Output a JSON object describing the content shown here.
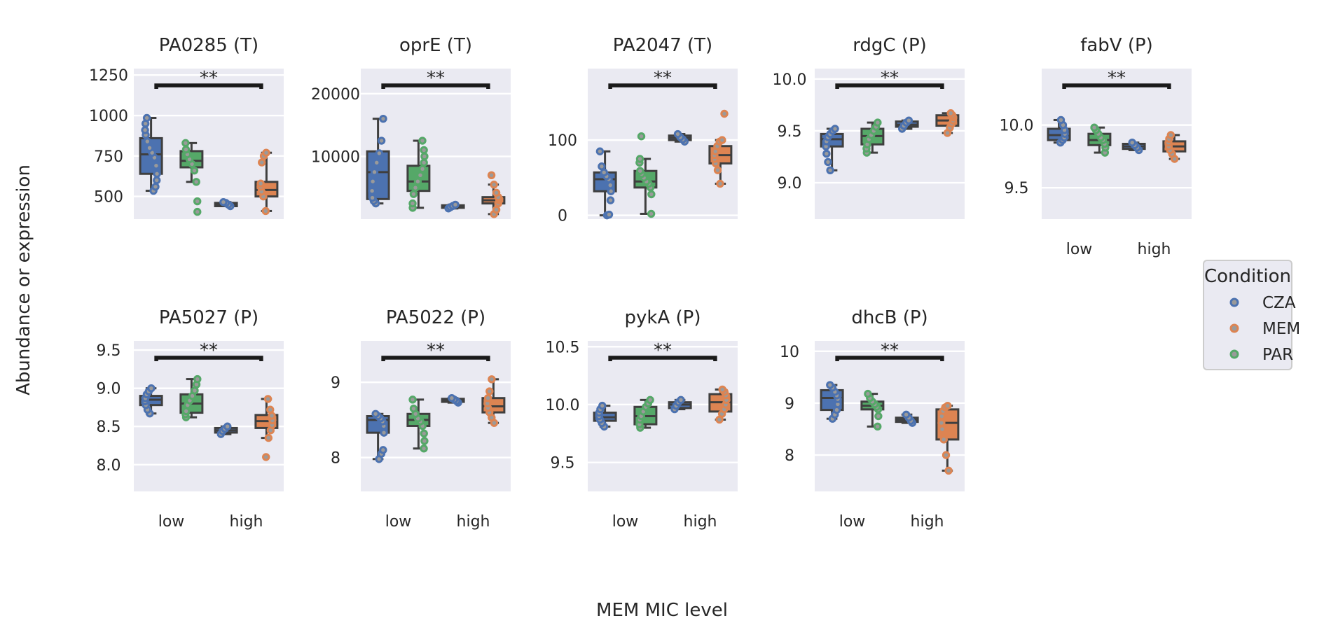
{
  "figure": {
    "xlabel": "MEM MIC level",
    "ylabel": "Abundance or expression"
  },
  "legend": {
    "title": "Condition",
    "entries": [
      {
        "label": "CZA",
        "color": "#4c72b0"
      },
      {
        "label": "MEM",
        "color": "#dd8452"
      },
      {
        "label": "PAR",
        "color": "#55a868"
      }
    ]
  },
  "chart_data": [
    {
      "type": "box",
      "title": "PA0285 (T)",
      "categories": [
        "low",
        "high"
      ],
      "ylim": [
        360,
        1290
      ],
      "yticks": [
        500,
        750,
        1000,
        1250
      ],
      "yticklabels": [
        "500",
        "750",
        "1000",
        "1250"
      ],
      "show_xticks": false,
      "annotation": "**",
      "groups": [
        {
          "name": "CZA",
          "category": "low",
          "offset": -0.27,
          "color": "#4c72b0",
          "q1": 640,
          "median": 760,
          "q3": 860,
          "whislo": 535,
          "whishi": 985,
          "points": [
            535,
            560,
            600,
            640,
            690,
            740,
            770,
            800,
            840,
            880,
            910,
            950,
            985
          ]
        },
        {
          "name": "PAR",
          "category": "low",
          "offset": 0.27,
          "color": "#55a868",
          "q1": 680,
          "median": 720,
          "q3": 780,
          "whislo": 590,
          "whishi": 830,
          "points": [
            405,
            470,
            590,
            660,
            700,
            730,
            760,
            790,
            830
          ]
        },
        {
          "name": "CZA",
          "category": "high",
          "offset": -0.27,
          "color": "#4c72b0",
          "q1": 440,
          "median": 450,
          "q3": 460,
          "whislo": 440,
          "whishi": 465,
          "points": [
            440,
            450,
            460,
            465
          ]
        },
        {
          "name": "MEM",
          "category": "high",
          "offset": 0.27,
          "color": "#dd8452",
          "q1": 500,
          "median": 540,
          "q3": 590,
          "whislo": 410,
          "whishi": 770,
          "points": [
            410,
            500,
            530,
            560,
            580,
            710,
            750,
            770
          ]
        }
      ]
    },
    {
      "type": "box",
      "title": "oprE (T)",
      "categories": [
        "low",
        "high"
      ],
      "ylim": [
        0,
        24000
      ],
      "yticks": [
        10000,
        20000
      ],
      "yticklabels": [
        "10000",
        "20000"
      ],
      "show_xticks": false,
      "annotation": "**",
      "groups": [
        {
          "name": "CZA",
          "category": "low",
          "offset": -0.27,
          "color": "#4c72b0",
          "q1": 3200,
          "median": 7500,
          "q3": 10800,
          "whislo": 2500,
          "whishi": 16000,
          "points": [
            2500,
            2900,
            3400,
            4500,
            6000,
            7500,
            9000,
            10500,
            12500,
            16000
          ]
        },
        {
          "name": "PAR",
          "category": "low",
          "offset": 0.27,
          "color": "#55a868",
          "q1": 4500,
          "median": 6000,
          "q3": 8500,
          "whislo": 1800,
          "whishi": 12500,
          "points": [
            1800,
            2500,
            4000,
            5000,
            6000,
            7000,
            8000,
            9000,
            10000,
            11000,
            12500
          ]
        },
        {
          "name": "CZA",
          "category": "high",
          "offset": -0.27,
          "color": "#4c72b0",
          "q1": 1800,
          "median": 2000,
          "q3": 2200,
          "whislo": 1700,
          "whishi": 2300,
          "points": [
            1700,
            1900,
            2100,
            2300
          ]
        },
        {
          "name": "MEM",
          "category": "high",
          "offset": 0.27,
          "color": "#dd8452",
          "q1": 2500,
          "median": 3000,
          "q3": 3500,
          "whislo": 800,
          "whishi": 5500,
          "points": [
            800,
            1500,
            2500,
            3000,
            3200,
            3500,
            4200,
            5500,
            7000
          ]
        }
      ]
    },
    {
      "type": "box",
      "title": "PA2047 (T)",
      "categories": [
        "low",
        "high"
      ],
      "ylim": [
        -5,
        195
      ],
      "yticks": [
        0,
        100
      ],
      "yticklabels": [
        "0",
        "100"
      ],
      "show_xticks": false,
      "annotation": "**",
      "groups": [
        {
          "name": "CZA",
          "category": "low",
          "offset": -0.27,
          "color": "#4c72b0",
          "q1": 32,
          "median": 48,
          "q3": 57,
          "whislo": 0,
          "whishi": 85,
          "points": [
            0,
            1,
            20,
            32,
            40,
            48,
            52,
            57,
            65,
            85
          ]
        },
        {
          "name": "PAR",
          "category": "low",
          "offset": 0.27,
          "color": "#55a868",
          "q1": 37,
          "median": 45,
          "q3": 59,
          "whislo": 2,
          "whishi": 75,
          "points": [
            2,
            28,
            37,
            42,
            45,
            50,
            55,
            59,
            70,
            75,
            105
          ]
        },
        {
          "name": "CZA",
          "category": "high",
          "offset": -0.27,
          "color": "#4c72b0",
          "q1": 100,
          "median": 103,
          "q3": 106,
          "whislo": 98,
          "whishi": 108,
          "points": [
            98,
            101,
            104,
            108
          ]
        },
        {
          "name": "MEM",
          "category": "high",
          "offset": 0.27,
          "color": "#dd8452",
          "q1": 69,
          "median": 80,
          "q3": 92,
          "whislo": 42,
          "whishi": 100,
          "points": [
            42,
            60,
            69,
            75,
            80,
            85,
            92,
            98,
            100,
            135
          ]
        }
      ]
    },
    {
      "type": "box",
      "title": "rdgC (P)",
      "categories": [
        "low",
        "high"
      ],
      "ylim": [
        8.65,
        10.1
      ],
      "yticks": [
        9.0,
        9.5,
        10.0
      ],
      "yticklabels": [
        "9.0",
        "9.5",
        "10.0"
      ],
      "show_xticks": false,
      "annotation": "**",
      "groups": [
        {
          "name": "CZA",
          "category": "low",
          "offset": -0.27,
          "color": "#4c72b0",
          "q1": 9.35,
          "median": 9.42,
          "q3": 9.47,
          "whislo": 9.12,
          "whishi": 9.52,
          "points": [
            9.12,
            9.2,
            9.28,
            9.35,
            9.4,
            9.44,
            9.47,
            9.5,
            9.52
          ]
        },
        {
          "name": "PAR",
          "category": "low",
          "offset": 0.27,
          "color": "#55a868",
          "q1": 9.37,
          "median": 9.45,
          "q3": 9.52,
          "whislo": 9.29,
          "whishi": 9.58,
          "points": [
            9.29,
            9.33,
            9.37,
            9.42,
            9.46,
            9.5,
            9.54,
            9.58
          ]
        },
        {
          "name": "CZA",
          "category": "high",
          "offset": -0.27,
          "color": "#4c72b0",
          "q1": 9.54,
          "median": 9.56,
          "q3": 9.59,
          "whislo": 9.52,
          "whishi": 9.6,
          "points": [
            9.52,
            9.55,
            9.58,
            9.6
          ]
        },
        {
          "name": "MEM",
          "category": "high",
          "offset": 0.27,
          "color": "#dd8452",
          "q1": 9.55,
          "median": 9.6,
          "q3": 9.65,
          "whislo": 9.48,
          "whishi": 9.67,
          "points": [
            9.48,
            9.53,
            9.57,
            9.6,
            9.63,
            9.65,
            9.67
          ]
        }
      ]
    },
    {
      "type": "box",
      "title": "fabV (P)",
      "categories": [
        "low",
        "high"
      ],
      "ylim": [
        9.25,
        10.45
      ],
      "yticks": [
        9.5,
        10.0
      ],
      "yticklabels": [
        "9.5",
        "10.0"
      ],
      "show_xticks": true,
      "annotation": "**",
      "groups": [
        {
          "name": "CZA",
          "category": "low",
          "offset": -0.27,
          "color": "#4c72b0",
          "q1": 9.88,
          "median": 9.92,
          "q3": 9.97,
          "whislo": 9.86,
          "whishi": 10.04,
          "points": [
            9.86,
            9.88,
            9.9,
            9.93,
            9.96,
            10.0,
            10.04
          ]
        },
        {
          "name": "PAR",
          "category": "low",
          "offset": 0.27,
          "color": "#55a868",
          "q1": 9.84,
          "median": 9.88,
          "q3": 9.93,
          "whislo": 9.78,
          "whishi": 9.98,
          "points": [
            9.78,
            9.82,
            9.85,
            9.88,
            9.9,
            9.93,
            9.96,
            9.98
          ]
        },
        {
          "name": "CZA",
          "category": "high",
          "offset": -0.27,
          "color": "#4c72b0",
          "q1": 9.81,
          "median": 9.83,
          "q3": 9.85,
          "whislo": 9.8,
          "whishi": 9.86,
          "points": [
            9.8,
            9.82,
            9.84,
            9.86
          ]
        },
        {
          "name": "MEM",
          "category": "high",
          "offset": 0.27,
          "color": "#dd8452",
          "q1": 9.79,
          "median": 9.83,
          "q3": 9.87,
          "whislo": 9.73,
          "whishi": 9.92,
          "points": [
            9.73,
            9.77,
            9.8,
            9.83,
            9.86,
            9.89,
            9.92
          ]
        }
      ]
    },
    {
      "type": "box",
      "title": "PA5027 (P)",
      "categories": [
        "low",
        "high"
      ],
      "ylim": [
        7.65,
        9.62
      ],
      "yticks": [
        8.0,
        8.5,
        9.0,
        9.5
      ],
      "yticklabels": [
        "8.0",
        "8.5",
        "9.0",
        "9.5"
      ],
      "show_xticks": true,
      "annotation": "**",
      "groups": [
        {
          "name": "CZA",
          "category": "low",
          "offset": -0.27,
          "color": "#4c72b0",
          "q1": 8.78,
          "median": 8.85,
          "q3": 8.9,
          "whislo": 8.67,
          "whishi": 9.0,
          "points": [
            8.67,
            8.72,
            8.78,
            8.83,
            8.87,
            8.92,
            8.96,
            9.0
          ]
        },
        {
          "name": "PAR",
          "category": "low",
          "offset": 0.27,
          "color": "#55a868",
          "q1": 8.68,
          "median": 8.8,
          "q3": 8.92,
          "whislo": 8.62,
          "whishi": 9.12,
          "points": [
            8.62,
            8.66,
            8.7,
            8.78,
            8.84,
            8.9,
            8.97,
            9.05,
            9.12
          ]
        },
        {
          "name": "CZA",
          "category": "high",
          "offset": -0.27,
          "color": "#4c72b0",
          "q1": 8.42,
          "median": 8.45,
          "q3": 8.48,
          "whislo": 8.4,
          "whishi": 8.5,
          "points": [
            8.4,
            8.44,
            8.47,
            8.5
          ]
        },
        {
          "name": "MEM",
          "category": "high",
          "offset": 0.27,
          "color": "#dd8452",
          "q1": 8.48,
          "median": 8.57,
          "q3": 8.65,
          "whislo": 8.35,
          "whishi": 8.86,
          "points": [
            8.1,
            8.35,
            8.45,
            8.52,
            8.58,
            8.64,
            8.72,
            8.86
          ]
        }
      ]
    },
    {
      "type": "box",
      "title": "PA5022 (P)",
      "categories": [
        "low",
        "high"
      ],
      "ylim": [
        7.55,
        9.55
      ],
      "yticks": [
        8,
        9
      ],
      "yticklabels": [
        "8",
        "9"
      ],
      "show_xticks": true,
      "annotation": "**",
      "groups": [
        {
          "name": "CZA",
          "category": "low",
          "offset": -0.27,
          "color": "#4c72b0",
          "q1": 8.33,
          "median": 8.5,
          "q3": 8.55,
          "whislo": 7.98,
          "whishi": 8.58,
          "points": [
            7.98,
            8.05,
            8.1,
            8.33,
            8.42,
            8.48,
            8.52,
            8.55,
            8.58
          ]
        },
        {
          "name": "PAR",
          "category": "low",
          "offset": 0.27,
          "color": "#55a868",
          "q1": 8.42,
          "median": 8.5,
          "q3": 8.58,
          "whislo": 8.12,
          "whishi": 8.77,
          "points": [
            8.12,
            8.22,
            8.32,
            8.42,
            8.48,
            8.52,
            8.58,
            8.65,
            8.77
          ]
        },
        {
          "name": "CZA",
          "category": "high",
          "offset": -0.27,
          "color": "#4c72b0",
          "q1": 8.74,
          "median": 8.76,
          "q3": 8.78,
          "whislo": 8.73,
          "whishi": 8.79,
          "points": [
            8.73,
            8.75,
            8.77,
            8.79
          ]
        },
        {
          "name": "MEM",
          "category": "high",
          "offset": 0.27,
          "color": "#dd8452",
          "q1": 8.6,
          "median": 8.68,
          "q3": 8.79,
          "whislo": 8.46,
          "whishi": 9.04,
          "points": [
            8.46,
            8.53,
            8.6,
            8.66,
            8.72,
            8.79,
            8.88,
            9.04
          ]
        }
      ]
    },
    {
      "type": "box",
      "title": "pykA (P)",
      "categories": [
        "low",
        "high"
      ],
      "ylim": [
        9.25,
        10.55
      ],
      "yticks": [
        9.5,
        10.0,
        10.5
      ],
      "yticklabels": [
        "9.5",
        "10.0",
        "10.5"
      ],
      "show_xticks": true,
      "annotation": "**",
      "groups": [
        {
          "name": "CZA",
          "category": "low",
          "offset": -0.27,
          "color": "#4c72b0",
          "q1": 9.86,
          "median": 9.89,
          "q3": 9.93,
          "whislo": 9.81,
          "whishi": 9.99,
          "points": [
            9.81,
            9.84,
            9.87,
            9.9,
            9.93,
            9.96,
            9.99
          ]
        },
        {
          "name": "PAR",
          "category": "low",
          "offset": 0.27,
          "color": "#55a868",
          "q1": 9.83,
          "median": 9.9,
          "q3": 9.98,
          "whislo": 9.8,
          "whishi": 10.04,
          "points": [
            9.8,
            9.83,
            9.87,
            9.9,
            9.94,
            9.98,
            10.01,
            10.04
          ]
        },
        {
          "name": "CZA",
          "category": "high",
          "offset": -0.27,
          "color": "#4c72b0",
          "q1": 9.97,
          "median": 10.0,
          "q3": 10.02,
          "whislo": 9.96,
          "whishi": 10.04,
          "points": [
            9.96,
            9.99,
            10.02,
            10.04
          ]
        },
        {
          "name": "MEM",
          "category": "high",
          "offset": 0.27,
          "color": "#dd8452",
          "q1": 9.94,
          "median": 10.02,
          "q3": 10.09,
          "whislo": 9.87,
          "whishi": 10.13,
          "points": [
            9.87,
            9.92,
            9.96,
            10.0,
            10.04,
            10.08,
            10.11,
            10.13
          ]
        }
      ]
    },
    {
      "type": "box",
      "title": "dhcB (P)",
      "categories": [
        "low",
        "high"
      ],
      "ylim": [
        7.3,
        10.2
      ],
      "yticks": [
        8,
        9,
        10
      ],
      "yticklabels": [
        "8",
        "9",
        "10"
      ],
      "show_xticks": true,
      "annotation": "**",
      "groups": [
        {
          "name": "CZA",
          "category": "low",
          "offset": -0.27,
          "color": "#4c72b0",
          "q1": 8.87,
          "median": 9.1,
          "q3": 9.25,
          "whislo": 8.7,
          "whishi": 9.35,
          "points": [
            8.7,
            8.78,
            8.87,
            8.98,
            9.08,
            9.15,
            9.22,
            9.3,
            9.35
          ]
        },
        {
          "name": "PAR",
          "category": "low",
          "offset": 0.27,
          "color": "#55a868",
          "q1": 8.88,
          "median": 8.95,
          "q3": 9.03,
          "whislo": 8.55,
          "whishi": 9.18,
          "points": [
            8.55,
            8.75,
            8.88,
            8.93,
            8.98,
            9.03,
            9.1,
            9.18
          ]
        },
        {
          "name": "CZA",
          "category": "high",
          "offset": -0.27,
          "color": "#4c72b0",
          "q1": 8.64,
          "median": 8.68,
          "q3": 8.72,
          "whislo": 8.62,
          "whishi": 8.78,
          "points": [
            8.62,
            8.66,
            8.72,
            8.78
          ]
        },
        {
          "name": "MEM",
          "category": "high",
          "offset": 0.27,
          "color": "#dd8452",
          "q1": 8.3,
          "median": 8.62,
          "q3": 8.88,
          "whislo": 7.7,
          "whishi": 8.95,
          "points": [
            7.7,
            8.0,
            8.3,
            8.5,
            8.62,
            8.75,
            8.85,
            8.92,
            8.95
          ]
        }
      ]
    }
  ]
}
